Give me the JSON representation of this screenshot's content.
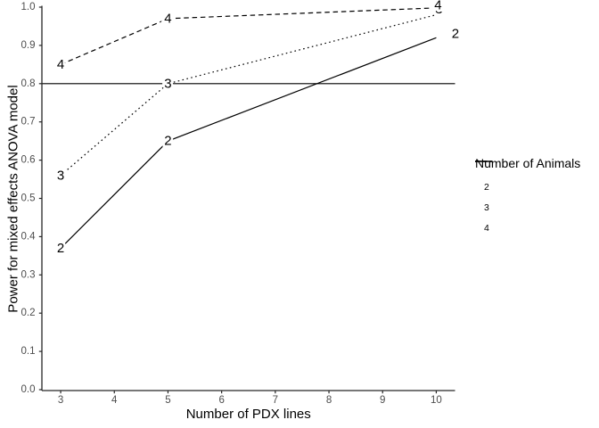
{
  "chart_data": {
    "type": "line",
    "title": "",
    "xlabel": "Number of PDX lines",
    "ylabel": "Power for mixed effects ANOVA model",
    "x": [
      3,
      5,
      10
    ],
    "series": [
      {
        "name": "2",
        "linetype": "solid",
        "values": [
          0.37,
          0.65,
          0.92
        ]
      },
      {
        "name": "3",
        "linetype": "dotted",
        "values": [
          0.56,
          0.8,
          0.98
        ]
      },
      {
        "name": "4",
        "linetype": "dashed",
        "values": [
          0.85,
          0.97,
          0.998
        ]
      }
    ],
    "point_labels": true,
    "reference_line_y": 0.8,
    "xticks": [
      "3",
      "4",
      "5",
      "6",
      "7",
      "8",
      "9",
      "10"
    ],
    "yticks": [
      "0.0",
      "0.1",
      "0.2",
      "0.3",
      "0.4",
      "0.5",
      "0.6",
      "0.7",
      "0.8",
      "0.9",
      "1.0"
    ],
    "xlim": [
      2.65,
      10.35
    ],
    "ylim": [
      0,
      1
    ],
    "grid": false,
    "legend": {
      "title": "Number of Animals",
      "position": "right",
      "entries": [
        {
          "label": "2",
          "linetype": "solid"
        },
        {
          "label": "3",
          "linetype": "dotted"
        },
        {
          "label": "4",
          "linetype": "dashed"
        }
      ]
    },
    "colors": {
      "line": "#000000",
      "text": "#000000",
      "tick_label": "#4d4d4d",
      "axis": "#262626",
      "background": "#ffffff"
    }
  }
}
